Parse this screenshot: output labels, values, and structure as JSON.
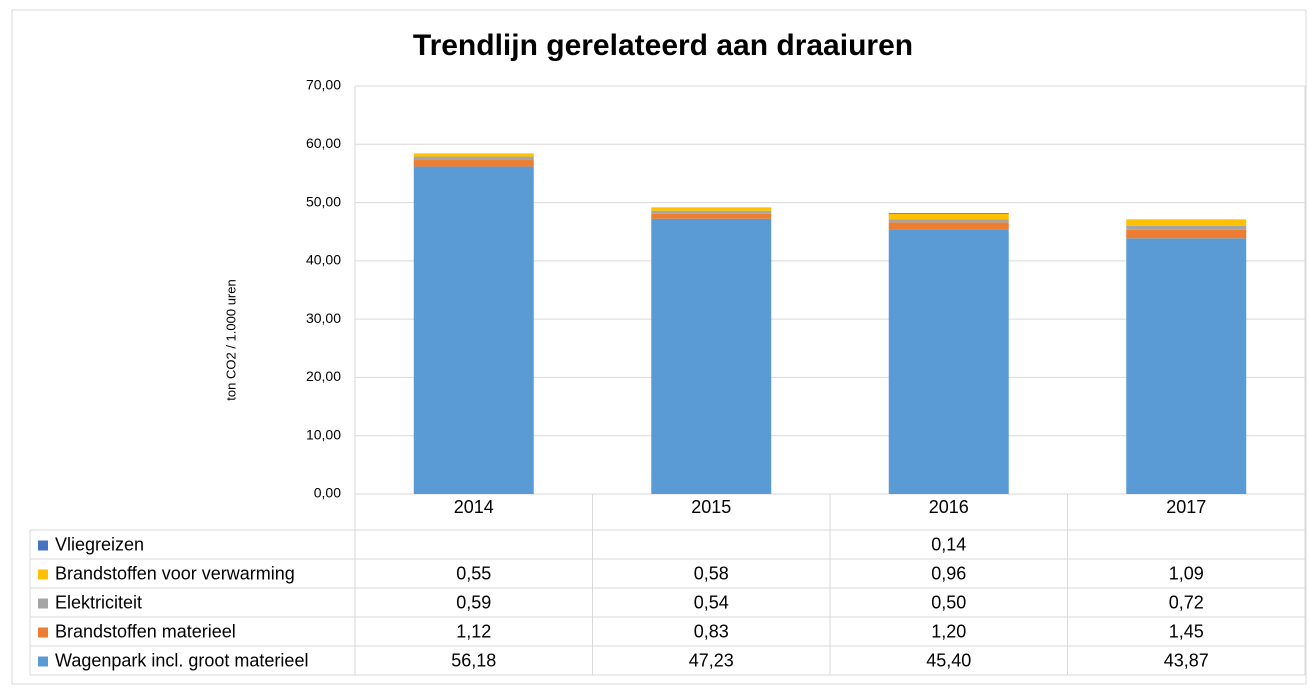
{
  "chart_data": {
    "type": "stacked_bar",
    "title": "Trendlijn gerelateerd aan draaiuren",
    "y_label": "ton CO2 / 1.000 uren",
    "categories": [
      "2014",
      "2015",
      "2016",
      "2017"
    ],
    "series": [
      {
        "name": "Wagenpark incl. groot materieel",
        "color": "#5b9bd5",
        "values": [
          56.18,
          47.23,
          45.4,
          43.87
        ],
        "value_labels": [
          "56,18",
          "47,23",
          "45,40",
          "43,87"
        ]
      },
      {
        "name": "Brandstoffen materieel",
        "color": "#ed7d31",
        "values": [
          1.12,
          0.83,
          1.2,
          1.45
        ],
        "value_labels": [
          "1,12",
          "0,83",
          "1,20",
          "1,45"
        ]
      },
      {
        "name": "Elektriciteit",
        "color": "#a5a5a5",
        "values": [
          0.59,
          0.54,
          0.5,
          0.72
        ],
        "value_labels": [
          "0,59",
          "0,54",
          "0,50",
          "0,72"
        ]
      },
      {
        "name": "Brandstoffen voor verwarming",
        "color": "#ffc000",
        "values": [
          0.55,
          0.58,
          0.96,
          1.09
        ],
        "value_labels": [
          "0,55",
          "0,58",
          "0,96",
          "1,09"
        ]
      },
      {
        "name": "Vliegreizen",
        "color": "#4472c4",
        "values": [
          null,
          null,
          0.14,
          null
        ],
        "value_labels": [
          null,
          null,
          "0,14",
          null
        ]
      }
    ],
    "ylim": [
      0,
      70
    ],
    "yticks": [
      {
        "value": 0,
        "label": "0,00"
      },
      {
        "value": 10,
        "label": "10,00"
      },
      {
        "value": 20,
        "label": "20,00"
      },
      {
        "value": 30,
        "label": "30,00"
      },
      {
        "value": 40,
        "label": "40,00"
      },
      {
        "value": 50,
        "label": "50,00"
      },
      {
        "value": 60,
        "label": "60,00"
      },
      {
        "value": 70,
        "label": "70,00"
      }
    ],
    "grid": true
  }
}
